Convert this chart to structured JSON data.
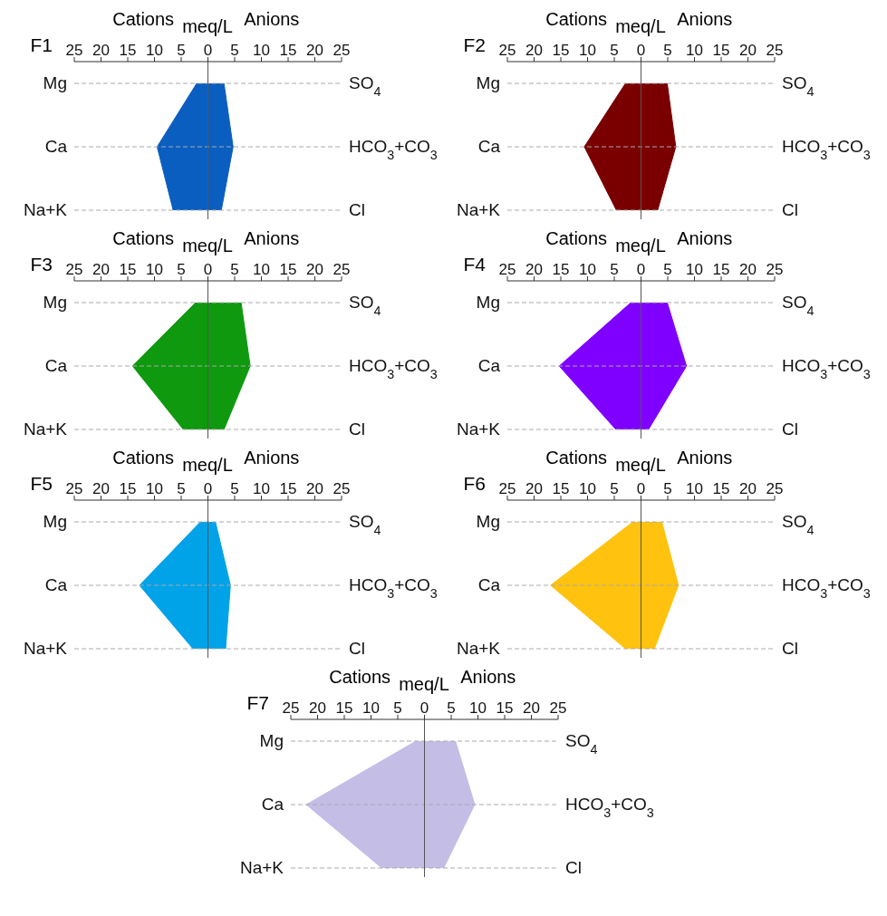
{
  "chart_data": [
    {
      "type": "area",
      "orientation": "horizontal",
      "title": "F1",
      "xlabel": "meq/L",
      "annotations": [
        "Cations",
        "Anions"
      ],
      "categories": [
        "Mg",
        "Ca",
        "Na+K"
      ],
      "y2_categories": [
        "SO$_{4}$",
        "HCO$_{3}$+CO$_{3}$",
        "Cl"
      ],
      "xlim": [
        -25,
        25
      ],
      "xticks": [
        {
          "value": -25,
          "label": "25"
        },
        {
          "value": -20,
          "label": "20"
        },
        {
          "value": -15,
          "label": "15"
        },
        {
          "value": -10,
          "label": "10"
        },
        {
          "value": -5,
          "label": "5"
        },
        0,
        5,
        10,
        15,
        20,
        25
      ],
      "grid": "y",
      "ref_lines": [
        {
          "axis": "x",
          "value": 0,
          "color": "#555555"
        }
      ],
      "series": [
        {
          "color": "#0a5ec0",
          "values": [
            -2.1,
            -9.5,
            -6.5
          ]
        },
        {
          "color": "#0a5ec0",
          "values": [
            3.0,
            4.7,
            2.5
          ]
        }
      ]
    },
    {
      "type": "area",
      "orientation": "horizontal",
      "title": "F2",
      "xlabel": "meq/L",
      "annotations": [
        "Cations",
        "Anions"
      ],
      "categories": [
        "Mg",
        "Ca",
        "Na+K"
      ],
      "y2_categories": [
        "SO$_{4}$",
        "HCO$_{3}$+CO$_{3}$",
        "Cl"
      ],
      "xlim": [
        -25,
        25
      ],
      "xticks": [
        {
          "value": -25,
          "label": "25"
        },
        {
          "value": -20,
          "label": "20"
        },
        {
          "value": -15,
          "label": "15"
        },
        {
          "value": -10,
          "label": "10"
        },
        {
          "value": -5,
          "label": "5"
        },
        0,
        5,
        10,
        15,
        20,
        25
      ],
      "grid": "y",
      "ref_lines": [
        {
          "axis": "x",
          "value": 0,
          "color": "#555555"
        }
      ],
      "series": [
        {
          "color": "#7a0000",
          "values": [
            -2.9,
            -10.6,
            -4.6
          ]
        },
        {
          "color": "#7a0000",
          "values": [
            4.9,
            6.5,
            3.1
          ]
        }
      ]
    },
    {
      "type": "area",
      "orientation": "horizontal",
      "title": "F3",
      "xlabel": "meq/L",
      "annotations": [
        "Cations",
        "Anions"
      ],
      "categories": [
        "Mg",
        "Ca",
        "Na+K"
      ],
      "y2_categories": [
        "SO$_{4}$",
        "HCO$_{3}$+CO$_{3}$",
        "Cl"
      ],
      "xlim": [
        -25,
        25
      ],
      "xticks": [
        {
          "value": -25,
          "label": "25"
        },
        {
          "value": -20,
          "label": "20"
        },
        {
          "value": -15,
          "label": "15"
        },
        {
          "value": -10,
          "label": "10"
        },
        {
          "value": -5,
          "label": "5"
        },
        0,
        5,
        10,
        15,
        20,
        25
      ],
      "grid": "y",
      "ref_lines": [
        {
          "axis": "x",
          "value": 0,
          "color": "#555555"
        }
      ],
      "series": [
        {
          "color": "#0e990e",
          "values": [
            -2.3,
            -14.1,
            -4.6
          ]
        },
        {
          "color": "#0e990e",
          "values": [
            6.2,
            7.9,
            3.0
          ]
        }
      ]
    },
    {
      "type": "area",
      "orientation": "horizontal",
      "title": "F4",
      "xlabel": "meq/L",
      "annotations": [
        "Cations",
        "Anions"
      ],
      "categories": [
        "Mg",
        "Ca",
        "Na+K"
      ],
      "y2_categories": [
        "SO$_{4}$",
        "HCO$_{3}$+CO$_{3}$",
        "Cl"
      ],
      "xlim": [
        -25,
        25
      ],
      "xticks": [
        {
          "value": -25,
          "label": "25"
        },
        {
          "value": -20,
          "label": "20"
        },
        {
          "value": -15,
          "label": "15"
        },
        {
          "value": -10,
          "label": "10"
        },
        {
          "value": -5,
          "label": "5"
        },
        0,
        5,
        10,
        15,
        20,
        25
      ],
      "grid": "y",
      "ref_lines": [
        {
          "axis": "x",
          "value": 0,
          "color": "#555555"
        }
      ],
      "series": [
        {
          "color": "#7f00ff",
          "values": [
            -1.9,
            -15.3,
            -4.7
          ]
        },
        {
          "color": "#7f00ff",
          "values": [
            4.9,
            8.5,
            1.4
          ]
        }
      ]
    },
    {
      "type": "area",
      "orientation": "horizontal",
      "title": "F5",
      "xlabel": "meq/L",
      "annotations": [
        "Cations",
        "Anions"
      ],
      "categories": [
        "Mg",
        "Ca",
        "Na+K"
      ],
      "y2_categories": [
        "SO$_{4}$",
        "HCO$_{3}$+CO$_{3}$",
        "Cl"
      ],
      "xlim": [
        -25,
        25
      ],
      "xticks": [
        {
          "value": -25,
          "label": "25"
        },
        {
          "value": -20,
          "label": "20"
        },
        {
          "value": -15,
          "label": "15"
        },
        {
          "value": -10,
          "label": "10"
        },
        {
          "value": -5,
          "label": "5"
        },
        0,
        5,
        10,
        15,
        20,
        25
      ],
      "grid": "y",
      "ref_lines": [
        {
          "axis": "x",
          "value": 0,
          "color": "#555555"
        }
      ],
      "series": [
        {
          "color": "#00a2e8",
          "values": [
            -1.4,
            -12.8,
            -2.8
          ]
        },
        {
          "color": "#00a2e8",
          "values": [
            1.4,
            4.2,
            3.3
          ]
        }
      ]
    },
    {
      "type": "area",
      "orientation": "horizontal",
      "title": "F6",
      "xlabel": "meq/L",
      "annotations": [
        "Cations",
        "Anions"
      ],
      "categories": [
        "Mg",
        "Ca",
        "Na+K"
      ],
      "y2_categories": [
        "SO$_{4}$",
        "HCO$_{3}$+CO$_{3}$",
        "Cl"
      ],
      "xlim": [
        -25,
        25
      ],
      "xticks": [
        {
          "value": -25,
          "label": "25"
        },
        {
          "value": -20,
          "label": "20"
        },
        {
          "value": -15,
          "label": "15"
        },
        {
          "value": -10,
          "label": "10"
        },
        {
          "value": -5,
          "label": "5"
        },
        0,
        5,
        10,
        15,
        20,
        25
      ],
      "grid": "y",
      "ref_lines": [
        {
          "axis": "x",
          "value": 0,
          "color": "#555555"
        }
      ],
      "series": [
        {
          "color": "#ffc20e",
          "values": [
            -1.5,
            -16.9,
            -2.9
          ]
        },
        {
          "color": "#ffc20e",
          "values": [
            3.9,
            7.0,
            2.5
          ]
        }
      ]
    },
    {
      "type": "area",
      "orientation": "horizontal",
      "title": "F7",
      "xlabel": "meq/L",
      "annotations": [
        "Cations",
        "Anions"
      ],
      "categories": [
        "Mg",
        "Ca",
        "Na+K"
      ],
      "y2_categories": [
        "SO$_{4}$",
        "HCO$_{3}$+CO$_{3}$",
        "Cl"
      ],
      "xlim": [
        -25,
        25
      ],
      "xticks": [
        {
          "value": -25,
          "label": "25"
        },
        {
          "value": -20,
          "label": "20"
        },
        {
          "value": -15,
          "label": "15"
        },
        {
          "value": -10,
          "label": "10"
        },
        {
          "value": -5,
          "label": "5"
        },
        0,
        5,
        10,
        15,
        20,
        25
      ],
      "grid": "y",
      "ref_lines": [
        {
          "axis": "x",
          "value": 0,
          "color": "#555555"
        }
      ],
      "series": [
        {
          "color": "#c4bde6",
          "values": [
            -1.6,
            -22.1,
            -8.0
          ]
        },
        {
          "color": "#c4bde6",
          "values": [
            5.8,
            9.4,
            3.6
          ]
        }
      ]
    }
  ]
}
